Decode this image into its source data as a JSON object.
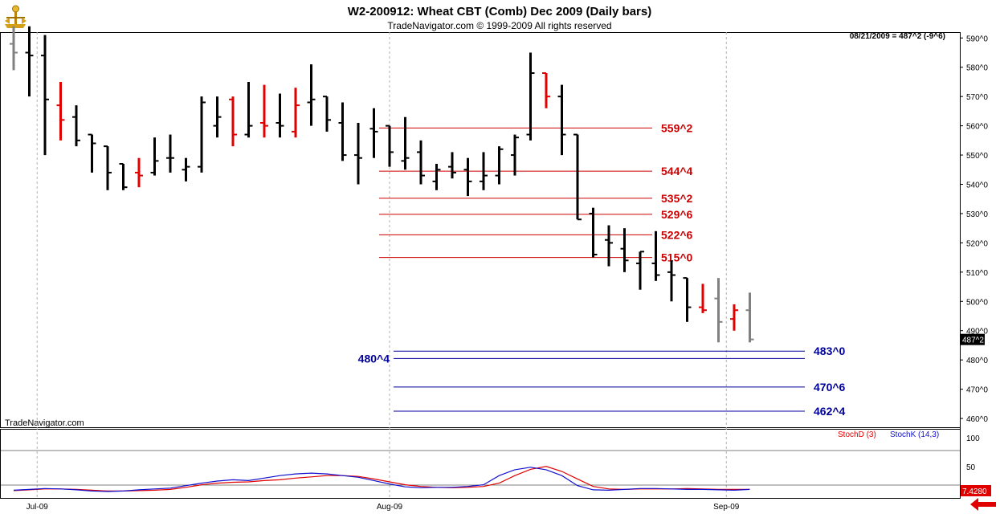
{
  "header": {
    "title": "W2-200912:  Wheat CBT (Comb) Dec 2009  (Daily bars)",
    "subtitle": "TradeNavigator.com © 1999-2009 All rights reserved",
    "quote": "08/21/2009 = 487^2 (-9^6)",
    "watermark": "TradeNavigator.com"
  },
  "colors": {
    "up_bar": "#000000",
    "down_bar": "#e00000",
    "inside_bar": "#808080",
    "resistance_line": "#cc0000",
    "support_line": "#000099",
    "stoch_d": "#e00000",
    "stoch_k": "#1010d0"
  },
  "chart_data": [
    {
      "type": "ohlc",
      "ylim": [
        457,
        592
      ],
      "y_ticks": [
        460,
        470,
        480,
        490,
        500,
        510,
        520,
        530,
        540,
        550,
        560,
        570,
        580,
        590
      ],
      "y_tick_labels": [
        "460^0",
        "470^0",
        "480^0",
        "490^0",
        "500^0",
        "510^0",
        "520^0",
        "530^0",
        "540^0",
        "550^0",
        "560^0",
        "570^0",
        "580^0",
        "590^0"
      ],
      "x_tick_labels": [
        "Jul-09",
        "Aug-09",
        "Sep-09"
      ],
      "x_tick_index": [
        1.5,
        24,
        45.5
      ],
      "n_slots": 64,
      "last_price_label": "487^2",
      "bars": [
        {
          "o": 588,
          "h": 594,
          "l": 579,
          "c": 585,
          "t": "g"
        },
        {
          "o": 585,
          "h": 594,
          "l": 570,
          "c": 584,
          "t": "k"
        },
        {
          "o": 584,
          "h": 591,
          "l": 550,
          "c": 569,
          "t": "k"
        },
        {
          "o": 567,
          "h": 575,
          "l": 555,
          "c": 562,
          "t": "r"
        },
        {
          "o": 563,
          "h": 567,
          "l": 553,
          "c": 555,
          "t": "k"
        },
        {
          "o": 557,
          "h": 557,
          "l": 544,
          "c": 554,
          "t": "k"
        },
        {
          "o": 553,
          "h": 553,
          "l": 538,
          "c": 544,
          "t": "k"
        },
        {
          "o": 547,
          "h": 547,
          "l": 538,
          "c": 539,
          "t": "k"
        },
        {
          "o": 544,
          "h": 549,
          "l": 539,
          "c": 543,
          "t": "r"
        },
        {
          "o": 544,
          "h": 556,
          "l": 543,
          "c": 548,
          "t": "k"
        },
        {
          "o": 549,
          "h": 557,
          "l": 544,
          "c": 549,
          "t": "k"
        },
        {
          "o": 545,
          "h": 549,
          "l": 541,
          "c": 546,
          "t": "k"
        },
        {
          "o": 546,
          "h": 570,
          "l": 544,
          "c": 568,
          "t": "k"
        },
        {
          "o": 560,
          "h": 570,
          "l": 556,
          "c": 563,
          "t": "k"
        },
        {
          "o": 569,
          "h": 570,
          "l": 553,
          "c": 557,
          "t": "r"
        },
        {
          "o": 557,
          "h": 575,
          "l": 556,
          "c": 560,
          "t": "k"
        },
        {
          "o": 561,
          "h": 574,
          "l": 556,
          "c": 560,
          "t": "r"
        },
        {
          "o": 561,
          "h": 571,
          "l": 556,
          "c": 560,
          "t": "k"
        },
        {
          "o": 558,
          "h": 573,
          "l": 556,
          "c": 567,
          "t": "r"
        },
        {
          "o": 568,
          "h": 581,
          "l": 560,
          "c": 569,
          "t": "k"
        },
        {
          "o": 570,
          "h": 570,
          "l": 558,
          "c": 562,
          "t": "k"
        },
        {
          "o": 561,
          "h": 568,
          "l": 548,
          "c": 550,
          "t": "k"
        },
        {
          "o": 550,
          "h": 561,
          "l": 540,
          "c": 549,
          "t": "k"
        },
        {
          "o": 559,
          "h": 566,
          "l": 549,
          "c": 558,
          "t": "k"
        },
        {
          "o": 560,
          "h": 560,
          "l": 546,
          "c": 551,
          "t": "k"
        },
        {
          "o": 548,
          "h": 563,
          "l": 545,
          "c": 549,
          "t": "k"
        },
        {
          "o": 551,
          "h": 555,
          "l": 540,
          "c": 543,
          "t": "k"
        },
        {
          "o": 541,
          "h": 547,
          "l": 538,
          "c": 545,
          "t": "k"
        },
        {
          "o": 546,
          "h": 551,
          "l": 542,
          "c": 544,
          "t": "k"
        },
        {
          "o": 545,
          "h": 549,
          "l": 536,
          "c": 541,
          "t": "k"
        },
        {
          "o": 541,
          "h": 551,
          "l": 538,
          "c": 543,
          "t": "k"
        },
        {
          "o": 543,
          "h": 553,
          "l": 540,
          "c": 552,
          "t": "k"
        },
        {
          "o": 550,
          "h": 557,
          "l": 543,
          "c": 556,
          "t": "k"
        },
        {
          "o": 557,
          "h": 585,
          "l": 555,
          "c": 578,
          "t": "k"
        },
        {
          "o": 578,
          "h": 578,
          "l": 566,
          "c": 570,
          "t": "r"
        },
        {
          "o": 570,
          "h": 574,
          "l": 550,
          "c": 557,
          "t": "k"
        },
        {
          "o": 557,
          "h": 557,
          "l": 528,
          "c": 528,
          "t": "k"
        },
        {
          "o": 530,
          "h": 532,
          "l": 515,
          "c": 516,
          "t": "k"
        },
        {
          "o": 521,
          "h": 526,
          "l": 512,
          "c": 520,
          "t": "k"
        },
        {
          "o": 518,
          "h": 525,
          "l": 510,
          "c": 514,
          "t": "k"
        },
        {
          "o": 513,
          "h": 517,
          "l": 504,
          "c": 517,
          "t": "k"
        },
        {
          "o": 513,
          "h": 524,
          "l": 507,
          "c": 509,
          "t": "k"
        },
        {
          "o": 510,
          "h": 514,
          "l": 500,
          "c": 509,
          "t": "k"
        },
        {
          "o": 508,
          "h": 508,
          "l": 493,
          "c": 498,
          "t": "k"
        },
        {
          "o": 498,
          "h": 506,
          "l": 496,
          "c": 497,
          "t": "r"
        },
        {
          "o": 501,
          "h": 508,
          "l": 486,
          "c": 493,
          "t": "g"
        },
        {
          "o": 494,
          "h": 499,
          "l": 490,
          "c": 497,
          "t": "r"
        },
        {
          "o": 497,
          "h": 503,
          "l": 486,
          "c": 487,
          "t": "g"
        }
      ]
    },
    {
      "type": "horizontal_levels",
      "levels": [
        {
          "value": 559.25,
          "label": "559^2",
          "side": "upper"
        },
        {
          "value": 544.5,
          "label": "544^4",
          "side": "upper"
        },
        {
          "value": 535.25,
          "label": "535^2",
          "side": "upper"
        },
        {
          "value": 529.75,
          "label": "529^6",
          "side": "upper"
        },
        {
          "value": 522.75,
          "label": "522^6",
          "side": "upper"
        },
        {
          "value": 515.0,
          "label": "515^0",
          "side": "upper"
        },
        {
          "value": 483.0,
          "label": "483^0",
          "side": "lower-right"
        },
        {
          "value": 480.5,
          "label": "480^4",
          "side": "lower-left"
        },
        {
          "value": 470.75,
          "label": "470^6",
          "side": "lower-right"
        },
        {
          "value": 462.5,
          "label": "462^4",
          "side": "lower-right"
        }
      ]
    },
    {
      "type": "line",
      "ylim": [
        0,
        100
      ],
      "y_tick_labels": [
        "100",
        "50"
      ],
      "legend": [
        "StochD (3)",
        "StochK (14,3)"
      ],
      "last_value_label": "7.4280",
      "series": [
        {
          "name": "StochD (3)",
          "values": [
            4,
            6,
            8,
            8,
            7,
            5,
            3,
            3,
            4,
            5,
            7,
            12,
            18,
            22,
            24,
            25,
            28,
            30,
            34,
            37,
            40,
            40,
            38,
            32,
            25,
            18,
            14,
            12,
            11,
            12,
            14,
            22,
            40,
            55,
            62,
            50,
            32,
            14,
            8,
            7,
            8,
            8,
            8,
            9,
            8,
            7,
            7,
            7
          ]
        },
        {
          "name": "StochK (14,3)",
          "values": [
            5,
            7,
            9,
            8,
            6,
            3,
            2,
            3,
            6,
            8,
            10,
            16,
            22,
            27,
            30,
            28,
            34,
            40,
            44,
            46,
            44,
            40,
            36,
            28,
            20,
            13,
            11,
            12,
            12,
            14,
            18,
            40,
            54,
            60,
            54,
            40,
            16,
            6,
            5,
            7,
            9,
            9,
            8,
            7,
            7,
            6,
            5,
            7
          ]
        }
      ]
    }
  ]
}
